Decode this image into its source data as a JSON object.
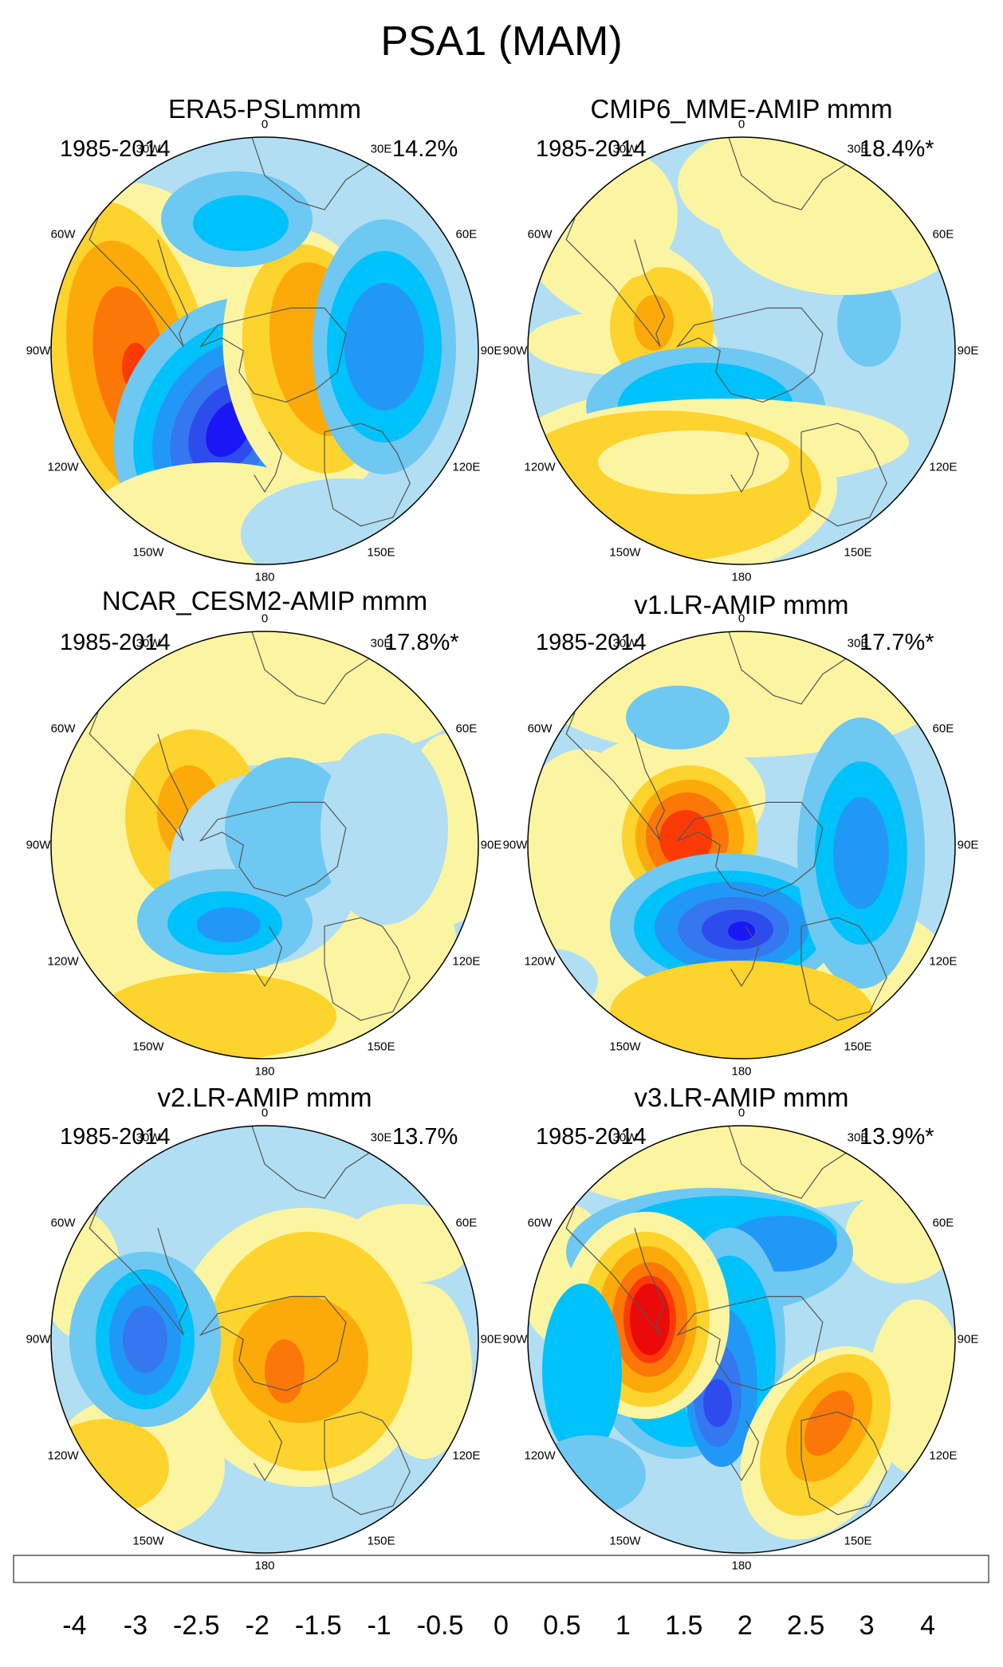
{
  "figure_title": "PSA1 (MAM)",
  "longitude_labels": [
    "0",
    "30E",
    "60E",
    "90E",
    "120E",
    "150E",
    "180",
    "150W",
    "120W",
    "90W",
    "60W",
    "30W"
  ],
  "colorbar": {
    "levels": [
      "-4",
      "-3",
      "-2.5",
      "-2",
      "-1.5",
      "-1",
      "-0.5",
      "0",
      "0.5",
      "1",
      "1.5",
      "2",
      "2.5",
      "3",
      "4"
    ],
    "colors": [
      "#8a2cf5",
      "#1a17f4",
      "#2e4cee",
      "#3577ef",
      "#2298f6",
      "#00c2fb",
      "#6ec8f2",
      "#b1def3",
      "#fbf5a2",
      "#fdd32d",
      "#fcaa0a",
      "#fb7708",
      "#fc3a06",
      "#eb0a0a",
      "#cf1a1c",
      "#fcb7b8"
    ]
  },
  "chart_data": {
    "type": "heatmap",
    "description_variable": "PSA1 sea-level-pressure pattern, polar stereographic (Southern Hemisphere)",
    "panels": [
      {
        "title": "ERA5-PSLmmm",
        "period": "1985-2014",
        "variance": "14.2%"
      },
      {
        "title": "CMIP6_MME-AMIP  mmm",
        "period": "1985-2014",
        "variance": "18.4%*"
      },
      {
        "title": "NCAR_CESM2-AMIP  mmm",
        "period": "1985-2014",
        "variance": "17.8%*"
      },
      {
        "title": "v1.LR-AMIP  mmm",
        "period": "1985-2014",
        "variance": "17.7%*"
      },
      {
        "title": "v2.LR-AMIP  mmm",
        "period": "1985-2014",
        "variance": "13.7%"
      },
      {
        "title": "v3.LR-AMIP  mmm",
        "period": "1985-2014",
        "variance": "13.9%*"
      }
    ]
  }
}
